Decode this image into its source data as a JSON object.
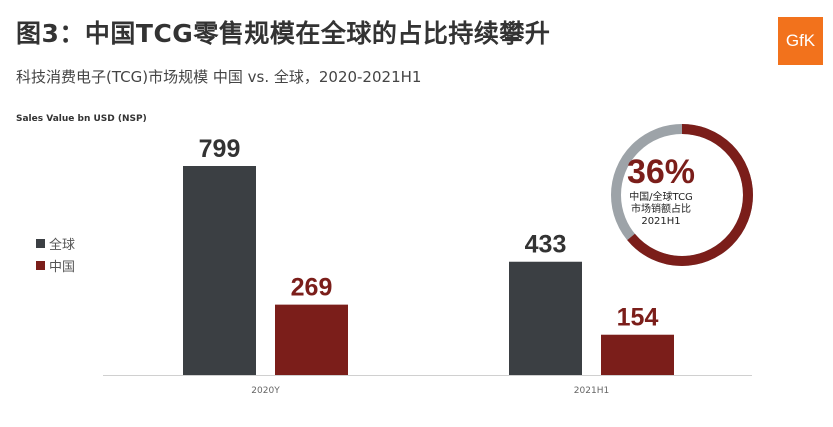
{
  "header": {
    "title": "图3：中国TCG零售规模在全球的占比持续攀升",
    "subtitle": "科技消费电子(TCG)市场规模 中国 vs. 全球，2020-2021H1",
    "logo_text": "GfK"
  },
  "colors": {
    "global": "#3b3f43",
    "china": "#7b1e1a",
    "ring_track": "#9da3a8",
    "logo": "#f2721c"
  },
  "highlight": {
    "percent": "36%",
    "value": 36,
    "label_lines": [
      "中国/全球TCG",
      "市场销额占比",
      "2021H1"
    ]
  },
  "chart_data": {
    "type": "bar",
    "title": "",
    "ylabel": "Sales Value bn USD (NSP)",
    "xlabel": "",
    "categories": [
      "2020Y",
      "2021H1"
    ],
    "series": [
      {
        "name": "全球",
        "values": [
          799,
          433
        ]
      },
      {
        "name": "中国",
        "values": [
          269,
          154
        ]
      }
    ],
    "ylim": [
      0,
      900
    ],
    "legend_position": "left",
    "grid": false
  }
}
